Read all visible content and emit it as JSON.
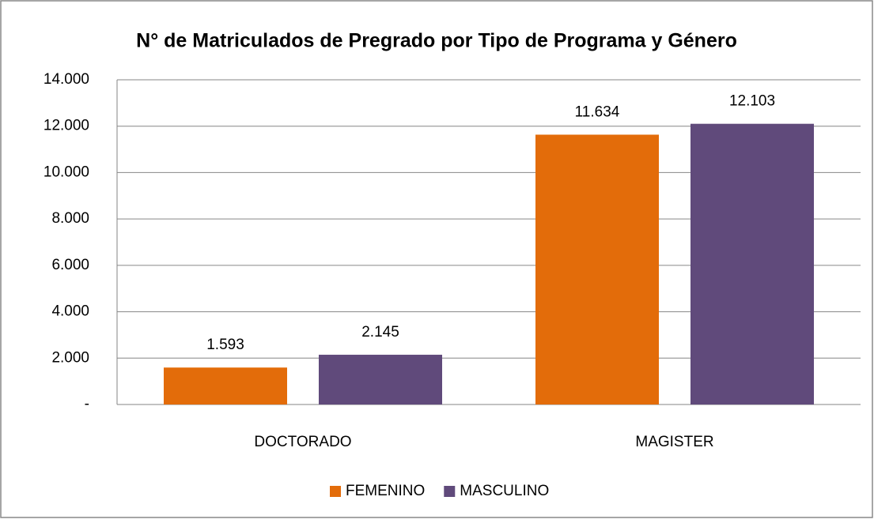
{
  "chart_data": {
    "type": "bar",
    "title": "N° de Matriculados de Pregrado por Tipo de Programa y Género",
    "categories": [
      "DOCTORADO",
      "MAGISTER"
    ],
    "series": [
      {
        "name": "FEMENINO",
        "color": "#e36c0a",
        "values": [
          1593,
          11634
        ],
        "value_labels": [
          "1.593",
          "11.634"
        ]
      },
      {
        "name": "MASCULINO",
        "color": "#604a7b",
        "values": [
          2145,
          12103
        ],
        "value_labels": [
          "2.145",
          "12.103"
        ]
      }
    ],
    "ylim": [
      0,
      14000
    ],
    "yticks": [
      {
        "value": 0,
        "label": "-"
      },
      {
        "value": 2000,
        "label": "2.000"
      },
      {
        "value": 4000,
        "label": "4.000"
      },
      {
        "value": 6000,
        "label": "6.000"
      },
      {
        "value": 8000,
        "label": "8.000"
      },
      {
        "value": 10000,
        "label": "10.000"
      },
      {
        "value": 12000,
        "label": "12.000"
      },
      {
        "value": 14000,
        "label": "14.000"
      }
    ],
    "grid": true,
    "legend": "bottom"
  }
}
